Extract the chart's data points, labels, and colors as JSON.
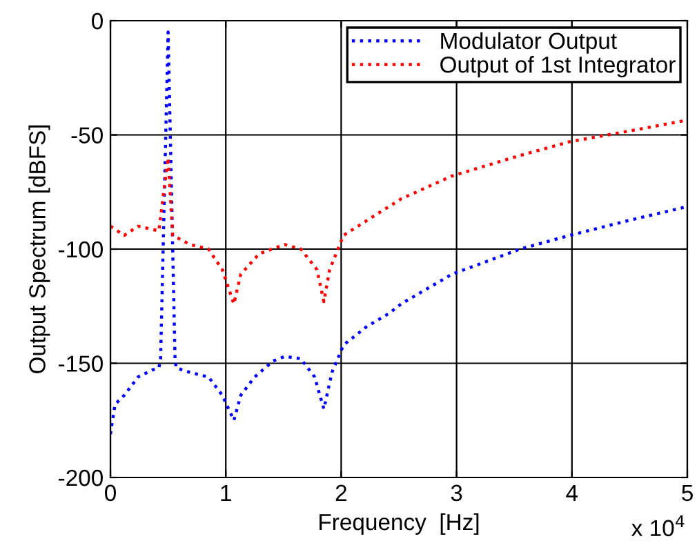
{
  "chart_data": {
    "type": "line",
    "xlabel": "Frequency  [Hz]",
    "ylabel": "Output Spectrum [dBFS]",
    "xlim": [
      0,
      5
    ],
    "xticks": [
      0,
      1,
      2,
      3,
      4,
      5
    ],
    "ylim": [
      -200,
      0
    ],
    "yticks": [
      -200,
      -150,
      -100,
      -50,
      0
    ],
    "grid": true,
    "legend": "top right",
    "line_style": "dotted",
    "annotations": [
      "x 10$^{4}$"
    ],
    "series": [
      {
        "name": "Modulator Output",
        "color": "#0000ff",
        "x": [
          0,
          0.04,
          0.12,
          0.24,
          0.36,
          0.42,
          0.435,
          0.5,
          0.56,
          0.57,
          0.69,
          0.85,
          0.97,
          1.07,
          1.13,
          1.25,
          1.41,
          1.51,
          1.65,
          1.77,
          1.85,
          1.92,
          2.02,
          2.22,
          2.42,
          2.52,
          2.96,
          3.55,
          3.98,
          4.53,
          4.95,
          5
        ],
        "values": [
          -181,
          -168,
          -164,
          -156,
          -153,
          -152,
          -148,
          -5,
          -148,
          -152,
          -154,
          -156,
          -164,
          -175,
          -164,
          -156,
          -149,
          -147,
          -148,
          -156,
          -170,
          -154,
          -142,
          -134,
          -128,
          -124,
          -111,
          -100,
          -94,
          -87,
          -82,
          -81
        ]
      },
      {
        "name": "Output of 1st Integrator",
        "color": "#ff0000",
        "x": [
          0,
          0.12,
          0.24,
          0.42,
          0.5,
          0.54,
          0.69,
          0.85,
          0.97,
          1.07,
          1.13,
          1.29,
          1.51,
          1.65,
          1.79,
          1.85,
          1.9,
          2.02,
          2.3,
          2.52,
          2.96,
          3.55,
          3.98,
          4.53,
          4.95,
          5
        ],
        "values": [
          -90,
          -94,
          -90,
          -92,
          -60,
          -94,
          -98,
          -100,
          -109,
          -124,
          -111,
          -102,
          -98,
          -100,
          -109,
          -123,
          -109,
          -94,
          -85,
          -78,
          -68,
          -59,
          -53,
          -48,
          -44,
          -43
        ]
      }
    ]
  }
}
